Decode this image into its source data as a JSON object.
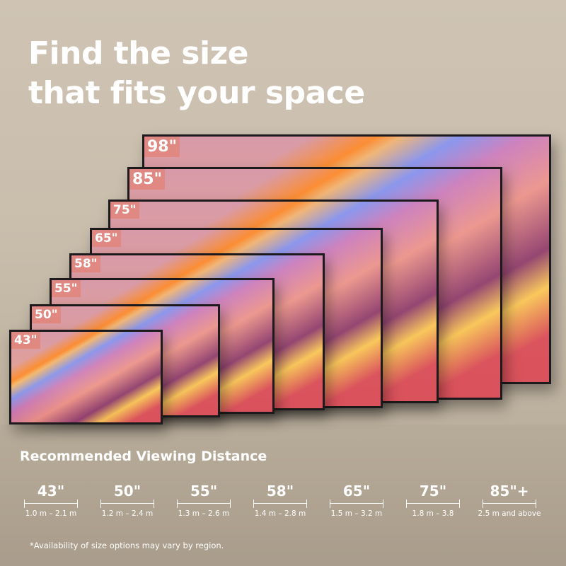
{
  "headline": {
    "line1": "Find the size",
    "line2": "that fits your space"
  },
  "tvs": [
    {
      "size": "98\""
    },
    {
      "size": "85\""
    },
    {
      "size": "75\""
    },
    {
      "size": "65\""
    },
    {
      "size": "58\""
    },
    {
      "size": "55\""
    },
    {
      "size": "50\""
    },
    {
      "size": "43\""
    }
  ],
  "viewing": {
    "title": "Recommended Viewing Distance",
    "items": [
      {
        "size": "43\"",
        "range": "1.0 m – 2.1 m"
      },
      {
        "size": "50\"",
        "range": "1.2 m – 2.4 m"
      },
      {
        "size": "55\"",
        "range": "1.3 m – 2.6 m"
      },
      {
        "size": "58\"",
        "range": "1.4 m – 2.8 m"
      },
      {
        "size": "65\"",
        "range": "1.5 m – 3.2 m"
      },
      {
        "size": "75\"",
        "range": "1.8 m – 3.8"
      },
      {
        "size": "85\"+",
        "range": "2.5 m and above"
      }
    ]
  },
  "footnote": "*Availability of size options may vary by region."
}
